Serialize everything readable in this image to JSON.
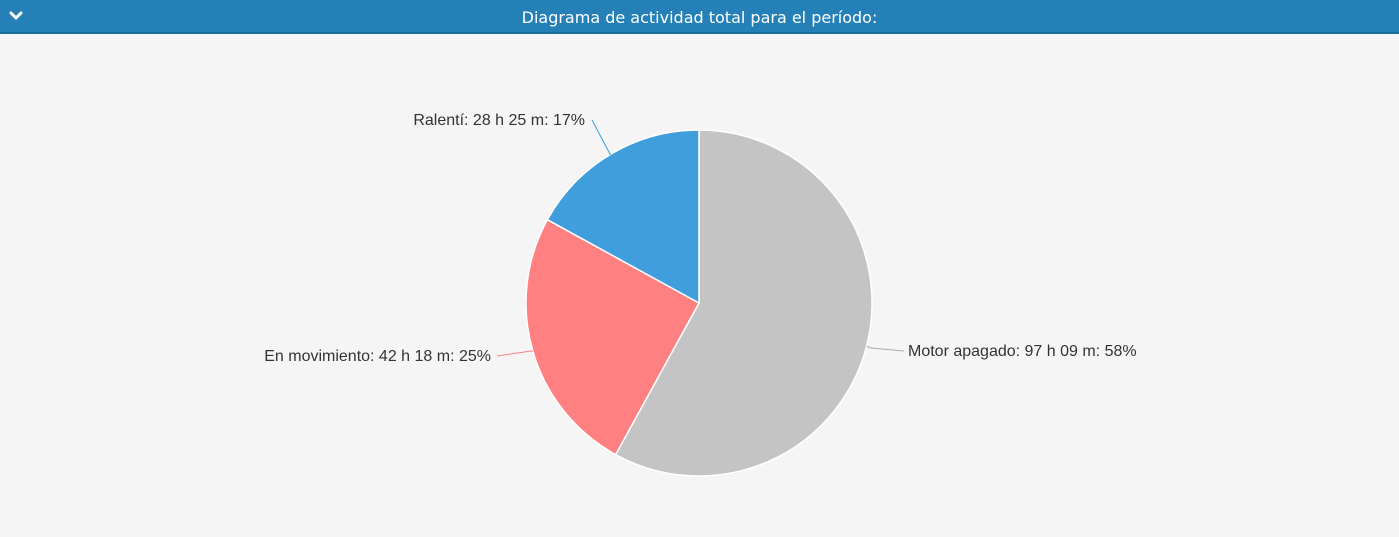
{
  "header": {
    "title": "Diagrama de actividad total para el período:",
    "toggle_icon": "chevron-down-icon"
  },
  "chart_data": {
    "type": "pie",
    "slices": [
      {
        "name": "Motor apagado",
        "duration": "97 h 09 m",
        "percent": 58,
        "label": "Motor apagado: 97 h 09 m: 58%",
        "color": "#c4c4c4"
      },
      {
        "name": "En movimiento",
        "duration": "42 h 18 m",
        "percent": 25,
        "label": "En movimiento: 42 h 18 m: 25%",
        "color": "#ff8080"
      },
      {
        "name": "Ralentí",
        "duration": "28 h 25 m",
        "percent": 17,
        "label": "Ralentí: 28 h 25 m: 17%",
        "color": "#409edd"
      }
    ]
  }
}
